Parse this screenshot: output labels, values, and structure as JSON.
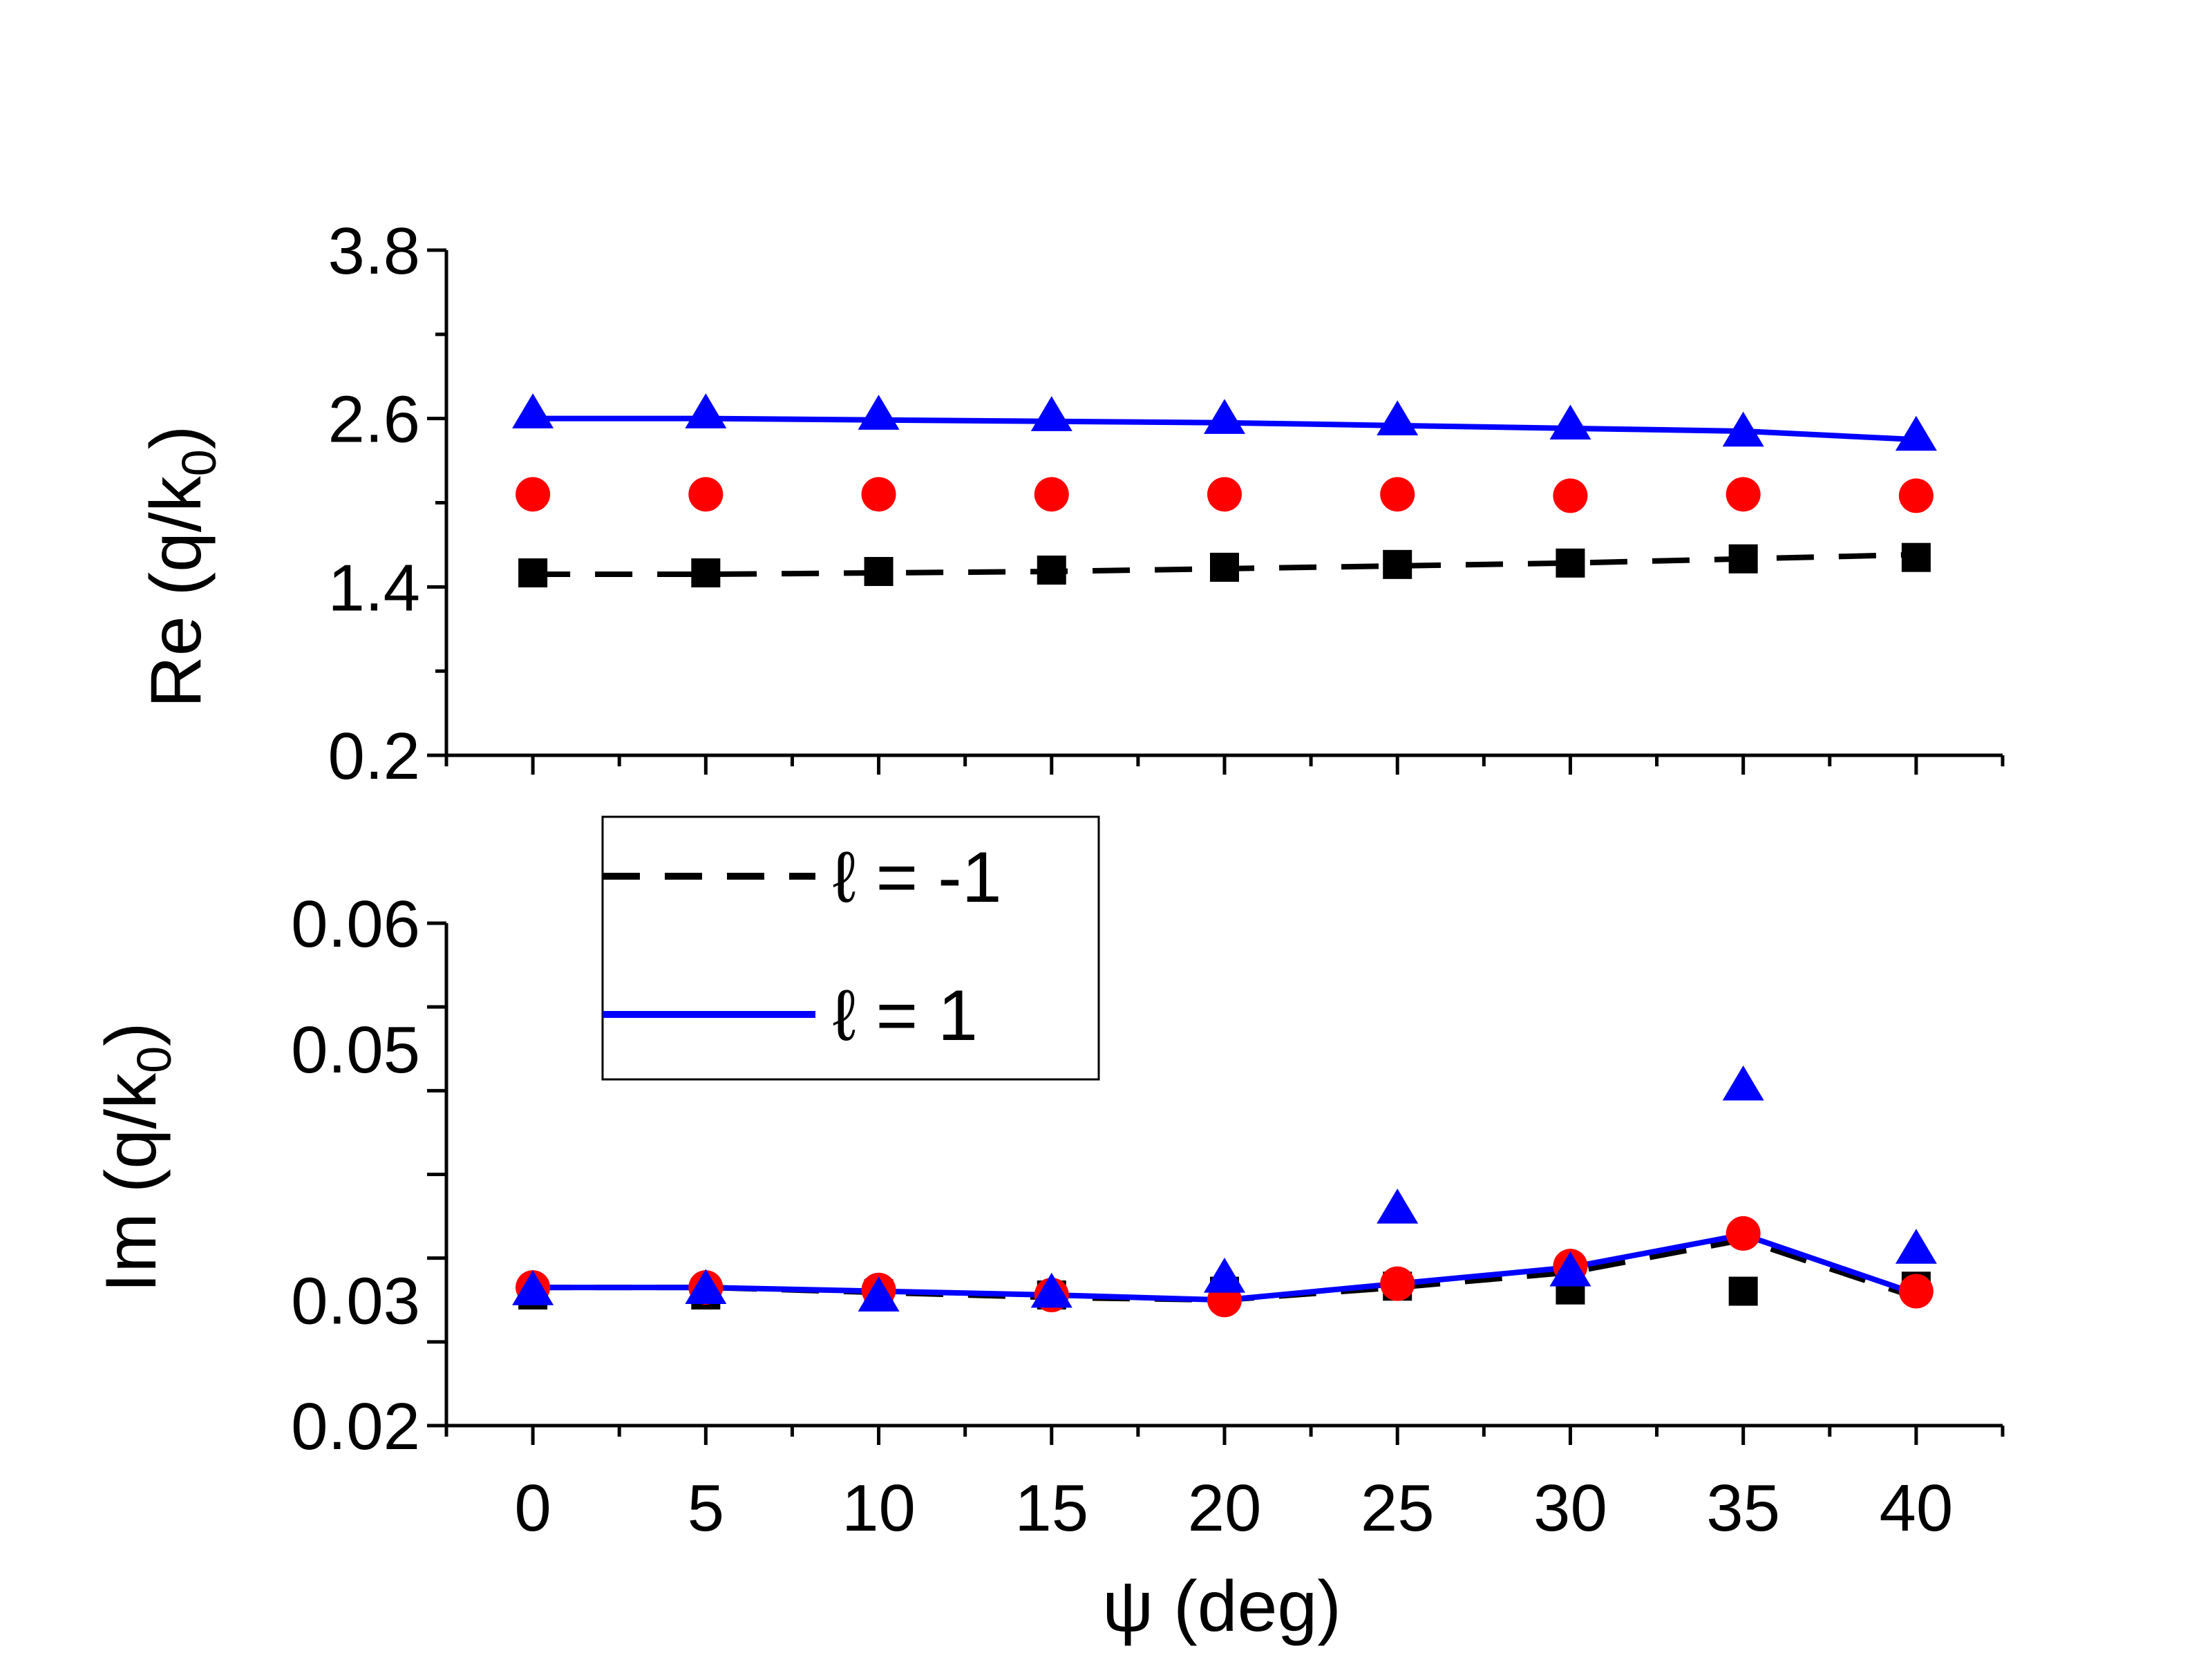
{
  "chart_data": {
    "type": "scatter",
    "x": [
      0,
      5,
      10,
      15,
      20,
      25,
      30,
      35,
      40
    ],
    "xlabel": "ψ (deg)",
    "xlim": [
      -2.5,
      42.5
    ],
    "xticks": [
      0,
      5,
      10,
      15,
      20,
      25,
      30,
      35,
      40
    ],
    "colors": {
      "black_series": "#000000",
      "red_series": "#ff0000",
      "blue_series": "#0000ff"
    },
    "legend": {
      "placement": "center-left between panels",
      "entries": [
        {
          "label": "ℓ = -1",
          "style": "dashed",
          "color": "#000000"
        },
        {
          "label": "ℓ = 1",
          "style": "solid",
          "color": "#0000ff"
        }
      ]
    },
    "panels": [
      {
        "id": "top",
        "ylabel": "Re (q/k",
        "ylabel_sub": "0",
        "ylabel_end": ")",
        "ylim": [
          0.2,
          3.8
        ],
        "yticks": [
          "3.8",
          "2.6",
          "1.4",
          "0.2"
        ],
        "ytick_values": [
          3.8,
          2.6,
          1.4,
          0.2
        ],
        "series": [
          {
            "name": "squares",
            "marker": "square",
            "color": "#000000",
            "values": [
              1.5,
              1.5,
              1.51,
              1.52,
              1.54,
              1.56,
              1.57,
              1.6,
              1.61
            ]
          },
          {
            "name": "circles",
            "marker": "circle",
            "color": "#ff0000",
            "values": [
              2.06,
              2.06,
              2.06,
              2.06,
              2.06,
              2.06,
              2.05,
              2.06,
              2.05
            ]
          },
          {
            "name": "triangles",
            "marker": "triangle",
            "color": "#0000ff",
            "values": [
              2.63,
              2.63,
              2.62,
              2.61,
              2.59,
              2.58,
              2.55,
              2.5,
              2.47
            ]
          }
        ],
        "lines": [
          {
            "name": "ℓ = -1",
            "style": "dashed",
            "color": "#000000",
            "values": [
              1.49,
              1.49,
              1.5,
              1.51,
              1.53,
              1.55,
              1.57,
              1.6,
              1.63
            ]
          },
          {
            "name": "ℓ = 1",
            "style": "solid",
            "color": "#0000ff",
            "values": [
              2.6,
              2.6,
              2.59,
              2.58,
              2.57,
              2.55,
              2.53,
              2.51,
              2.45
            ]
          }
        ]
      },
      {
        "id": "bottom",
        "ylabel": "Im (q/k",
        "ylabel_sub": "0",
        "ylabel_end": ")",
        "ylim": [
          0.02,
          0.06
        ],
        "yticks": [
          "0.06",
          "0.05",
          "0.03",
          "0.02"
        ],
        "ytick_values": [
          0.06,
          0.05,
          0.03,
          0.02
        ],
        "series": [
          {
            "name": "squares",
            "marker": "square",
            "color": "#000000",
            "values": [
              0.0304,
              0.0304,
              0.0305,
              0.0304,
              0.0307,
              0.0311,
              0.0308,
              0.0307,
              0.0311
            ]
          },
          {
            "name": "circles",
            "marker": "circle",
            "color": "#ff0000",
            "values": [
              0.031,
              0.031,
              0.0308,
              0.0304,
              0.03,
              0.0313,
              0.0327,
              0.0353,
              0.0307
            ]
          },
          {
            "name": "triangles",
            "marker": "triangle",
            "color": "#0000ff",
            "values": [
              0.0307,
              0.0308,
              0.0302,
              0.0305,
              0.0317,
              0.0372,
              0.0322,
              0.047,
              0.034
            ]
          }
        ],
        "lines": [
          {
            "name": "ℓ = -1",
            "style": "dashed",
            "color": "#000000",
            "values": [
              0.031,
              0.031,
              0.0306,
              0.0302,
              0.03,
              0.031,
              0.0322,
              0.0348,
              0.0302
            ]
          },
          {
            "name": "ℓ = 1",
            "style": "solid",
            "color": "#0000ff",
            "values": [
              0.031,
              0.031,
              0.0307,
              0.0304,
              0.03,
              0.0313,
              0.0326,
              0.0352,
              0.0305
            ]
          }
        ]
      }
    ]
  }
}
